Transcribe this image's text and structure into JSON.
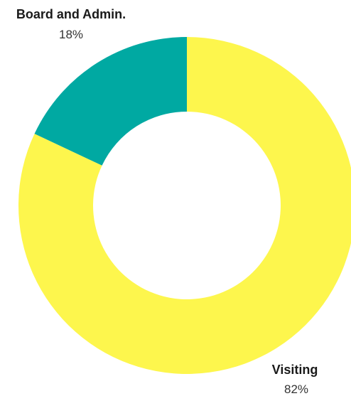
{
  "chart_data": {
    "type": "pie",
    "style": "donut",
    "start_angle_deg": 0,
    "direction": "clockwise",
    "slices": [
      {
        "label": "Visiting",
        "value": 82,
        "display": "82%",
        "color": "#FDF64D"
      },
      {
        "label": "Board and Admin.",
        "value": 18,
        "display": "18%",
        "color": "#00A9A2"
      }
    ],
    "legend": "none",
    "labels_outside": true
  }
}
